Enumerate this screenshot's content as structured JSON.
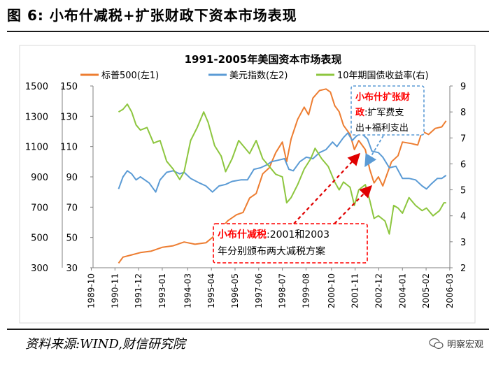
{
  "figure_title": "图 6:  小布什减税+扩张财政下资本市场表现",
  "source": "资料来源:WIND,财信研究院",
  "watermark": "明察宏观",
  "chart_data": {
    "type": "line",
    "title": "1991-2005年美国资本市场表现",
    "x_ticks": [
      "1989-10",
      "1990-11",
      "1991-12",
      "1993-01",
      "1994-03",
      "1995-04",
      "1996-05",
      "1997-06",
      "1998-07",
      "1999-08",
      "2000-10",
      "2001-11",
      "2002-12",
      "2004-01",
      "2005-02",
      "2006-03"
    ],
    "y_left1": {
      "label": "",
      "min": 300,
      "max": 1500,
      "ticks": [
        300,
        500,
        700,
        900,
        1100,
        1300,
        1500
      ]
    },
    "y_left2": {
      "label": "",
      "min": 30,
      "max": 150,
      "ticks": [
        30,
        50,
        70,
        90,
        110,
        130,
        150
      ]
    },
    "y_right": {
      "label": "",
      "min": 2,
      "max": 9,
      "ticks": [
        2,
        3,
        4,
        5,
        6,
        7,
        8,
        9
      ]
    },
    "grid": false,
    "legend_position": "top",
    "series": [
      {
        "name": "标普500(左1)",
        "axis": "left1",
        "color": "#ED7D31",
        "points": [
          [
            1991.0,
            330
          ],
          [
            1991.2,
            370
          ],
          [
            1991.6,
            385
          ],
          [
            1992.0,
            400
          ],
          [
            1992.5,
            410
          ],
          [
            1993.0,
            435
          ],
          [
            1993.5,
            445
          ],
          [
            1994.0,
            470
          ],
          [
            1994.5,
            455
          ],
          [
            1995.0,
            465
          ],
          [
            1995.3,
            500
          ],
          [
            1995.6,
            545
          ],
          [
            1996.0,
            610
          ],
          [
            1996.4,
            650
          ],
          [
            1996.7,
            665
          ],
          [
            1997.0,
            760
          ],
          [
            1997.3,
            790
          ],
          [
            1997.6,
            920
          ],
          [
            1997.9,
            960
          ],
          [
            1998.2,
            1060
          ],
          [
            1998.5,
            1130
          ],
          [
            1998.7,
            1000
          ],
          [
            1998.9,
            1150
          ],
          [
            1999.2,
            1280
          ],
          [
            1999.5,
            1360
          ],
          [
            1999.7,
            1310
          ],
          [
            1999.9,
            1420
          ],
          [
            2000.2,
            1470
          ],
          [
            2000.5,
            1480
          ],
          [
            2000.7,
            1460
          ],
          [
            2000.9,
            1370
          ],
          [
            2001.1,
            1330
          ],
          [
            2001.3,
            1240
          ],
          [
            2001.6,
            1180
          ],
          [
            2001.8,
            1080
          ],
          [
            2002.0,
            1140
          ],
          [
            2002.3,
            1080
          ],
          [
            2002.5,
            950
          ],
          [
            2002.7,
            860
          ],
          [
            2002.9,
            900
          ],
          [
            2003.1,
            840
          ],
          [
            2003.3,
            920
          ],
          [
            2003.5,
            1000
          ],
          [
            2003.8,
            1040
          ],
          [
            2004.0,
            1130
          ],
          [
            2004.4,
            1120
          ],
          [
            2004.7,
            1110
          ],
          [
            2004.9,
            1200
          ],
          [
            2005.2,
            1180
          ],
          [
            2005.5,
            1220
          ],
          [
            2005.8,
            1230
          ],
          [
            2006.0,
            1270
          ]
        ]
      },
      {
        "name": "美元指数(左2)",
        "axis": "left2",
        "color": "#5B9BD5",
        "points": [
          [
            1991.0,
            82
          ],
          [
            1991.2,
            90
          ],
          [
            1991.4,
            94
          ],
          [
            1991.6,
            92
          ],
          [
            1991.8,
            88
          ],
          [
            1992.0,
            90
          ],
          [
            1992.4,
            86
          ],
          [
            1992.7,
            80
          ],
          [
            1992.9,
            88
          ],
          [
            1993.2,
            93
          ],
          [
            1993.5,
            94
          ],
          [
            1993.8,
            92
          ],
          [
            1994.0,
            93
          ],
          [
            1994.3,
            89
          ],
          [
            1994.7,
            86
          ],
          [
            1995.0,
            84
          ],
          [
            1995.3,
            80
          ],
          [
            1995.6,
            84
          ],
          [
            1995.9,
            85
          ],
          [
            1996.2,
            87
          ],
          [
            1996.6,
            88
          ],
          [
            1996.9,
            88
          ],
          [
            1997.2,
            95
          ],
          [
            1997.5,
            96
          ],
          [
            1997.8,
            98
          ],
          [
            1998.0,
            100
          ],
          [
            1998.3,
            101
          ],
          [
            1998.6,
            102
          ],
          [
            1998.8,
            95
          ],
          [
            1999.0,
            94
          ],
          [
            1999.3,
            100
          ],
          [
            1999.6,
            103
          ],
          [
            1999.9,
            102
          ],
          [
            2000.2,
            106
          ],
          [
            2000.5,
            108
          ],
          [
            2000.8,
            113
          ],
          [
            2001.0,
            110
          ],
          [
            2001.3,
            116
          ],
          [
            2001.5,
            119
          ],
          [
            2001.7,
            114
          ],
          [
            2001.9,
            117
          ],
          [
            2002.1,
            119
          ],
          [
            2002.4,
            115
          ],
          [
            2002.6,
            107
          ],
          [
            2002.9,
            106
          ],
          [
            2003.1,
            103
          ],
          [
            2003.4,
            96
          ],
          [
            2003.7,
            97
          ],
          [
            2004.0,
            89
          ],
          [
            2004.3,
            89
          ],
          [
            2004.6,
            88
          ],
          [
            2004.9,
            84
          ],
          [
            2005.1,
            82
          ],
          [
            2005.3,
            85
          ],
          [
            2005.6,
            89
          ],
          [
            2005.8,
            89
          ],
          [
            2006.0,
            91
          ]
        ]
      },
      {
        "name": "10年期国债收益率(右)",
        "axis": "right",
        "color": "#8DC63F",
        "points": [
          [
            1991.0,
            8.0
          ],
          [
            1991.2,
            8.1
          ],
          [
            1991.4,
            8.3
          ],
          [
            1991.6,
            8.0
          ],
          [
            1991.8,
            7.5
          ],
          [
            1992.0,
            7.3
          ],
          [
            1992.3,
            7.4
          ],
          [
            1992.6,
            6.8
          ],
          [
            1992.9,
            6.9
          ],
          [
            1993.2,
            6.1
          ],
          [
            1993.5,
            5.8
          ],
          [
            1993.8,
            5.4
          ],
          [
            1994.0,
            5.7
          ],
          [
            1994.3,
            6.9
          ],
          [
            1994.6,
            7.4
          ],
          [
            1994.9,
            8.0
          ],
          [
            1995.1,
            7.6
          ],
          [
            1995.4,
            6.7
          ],
          [
            1995.7,
            6.3
          ],
          [
            1995.9,
            5.7
          ],
          [
            1996.2,
            6.2
          ],
          [
            1996.5,
            6.9
          ],
          [
            1996.7,
            6.7
          ],
          [
            1997.0,
            6.4
          ],
          [
            1997.3,
            6.9
          ],
          [
            1997.6,
            6.2
          ],
          [
            1997.9,
            5.9
          ],
          [
            1998.2,
            5.6
          ],
          [
            1998.5,
            5.5
          ],
          [
            1998.7,
            4.5
          ],
          [
            1998.9,
            4.7
          ],
          [
            1999.2,
            5.2
          ],
          [
            1999.5,
            5.8
          ],
          [
            1999.8,
            6.2
          ],
          [
            2000.0,
            6.6
          ],
          [
            2000.3,
            6.2
          ],
          [
            2000.6,
            5.9
          ],
          [
            2000.9,
            5.3
          ],
          [
            2001.1,
            5.0
          ],
          [
            2001.3,
            5.3
          ],
          [
            2001.6,
            5.1
          ],
          [
            2001.8,
            4.4
          ],
          [
            2002.0,
            5.0
          ],
          [
            2002.3,
            5.2
          ],
          [
            2002.5,
            4.6
          ],
          [
            2002.7,
            3.9
          ],
          [
            2002.9,
            4.0
          ],
          [
            2003.2,
            3.8
          ],
          [
            2003.4,
            3.3
          ],
          [
            2003.6,
            4.4
          ],
          [
            2003.8,
            4.3
          ],
          [
            2004.0,
            4.1
          ],
          [
            2004.3,
            4.7
          ],
          [
            2004.6,
            4.4
          ],
          [
            2004.9,
            4.2
          ],
          [
            2005.1,
            4.3
          ],
          [
            2005.4,
            4.0
          ],
          [
            2005.7,
            4.2
          ],
          [
            2005.9,
            4.5
          ],
          [
            2006.0,
            4.5
          ]
        ]
      }
    ],
    "annotations": [
      {
        "name": "anno-fiscal",
        "lines": [
          {
            "parts": [
              {
                "text": "小布什扩张财",
                "color": "#FF0000"
              }
            ]
          },
          {
            "parts": [
              {
                "text": "政",
                "color": "#FF0000"
              },
              {
                "text": ":扩军费支",
                "color": "#000000"
              }
            ]
          },
          {
            "parts": [
              {
                "text": "出+福利支出",
                "color": "#000000"
              }
            ]
          }
        ],
        "border_color": "#5B9BD5"
      },
      {
        "name": "anno-tax",
        "lines": [
          {
            "parts": [
              {
                "text": "小布什减税",
                "color": "#FF0000"
              },
              {
                "text": ":2001和2003",
                "color": "#000000"
              }
            ]
          },
          {
            "parts": [
              {
                "text": "年分别颁布两大减税方案",
                "color": "#000000"
              }
            ]
          }
        ],
        "border_color": "#FF0000"
      }
    ]
  }
}
